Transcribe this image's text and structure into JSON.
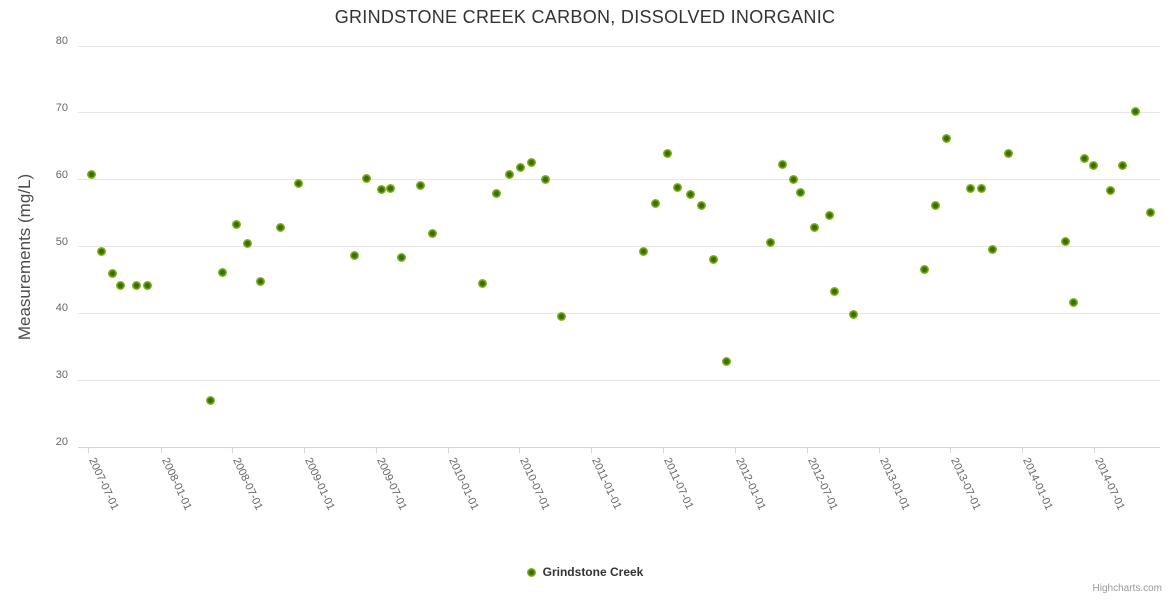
{
  "credit": "Highcharts.com",
  "colors": {
    "point_fill": "#7cb319",
    "point_edge": "#86bd2b",
    "point_core": "#3c6a00",
    "grid_line": "#e6e6e6",
    "axis_line": "#ccd6eb",
    "title_text": "#333333",
    "axis_label_text": "#666666",
    "axis_title_text": "#4d4d4d",
    "legend_text": "#333333",
    "credit_text": "#999999"
  },
  "chart_data": {
    "type": "scatter",
    "title": "GRINDSTONE CREEK CARBON, DISSOLVED INORGANIC",
    "xlabel": "",
    "ylabel": "Measurements (mg/L)",
    "ylim": [
      20,
      80
    ],
    "yticks": [
      20,
      30,
      40,
      50,
      60,
      70,
      80
    ],
    "xticks": [
      "2007-07-01",
      "2008-01-01",
      "2008-07-01",
      "2009-01-01",
      "2009-07-01",
      "2010-01-01",
      "2010-07-01",
      "2011-01-01",
      "2011-07-01",
      "2012-01-01",
      "2012-07-01",
      "2013-01-01",
      "2013-07-01",
      "2014-01-01",
      "2014-07-01"
    ],
    "x_range": [
      "2007-06-05",
      "2014-12-17"
    ],
    "grid": "horizontal",
    "legend_position": "bottom-center",
    "series": [
      {
        "name": "Grindstone Creek",
        "data": [
          [
            "2007-07-09",
            60.7
          ],
          [
            "2007-08-04",
            49.3
          ],
          [
            "2007-09-02",
            45.9
          ],
          [
            "2007-09-21",
            44.1
          ],
          [
            "2007-11-01",
            44.1
          ],
          [
            "2007-11-30",
            44.2
          ],
          [
            "2008-05-08",
            26.9
          ],
          [
            "2008-06-07",
            46.1
          ],
          [
            "2008-07-13",
            53.3
          ],
          [
            "2008-08-10",
            50.5
          ],
          [
            "2008-09-12",
            44.7
          ],
          [
            "2008-10-31",
            52.9
          ],
          [
            "2008-12-18",
            59.4
          ],
          [
            "2009-05-08",
            48.7
          ],
          [
            "2009-06-09",
            60.1
          ],
          [
            "2009-07-17",
            58.6
          ],
          [
            "2009-08-09",
            58.7
          ],
          [
            "2009-09-06",
            48.4
          ],
          [
            "2009-10-23",
            59.2
          ],
          [
            "2009-11-22",
            51.9
          ],
          [
            "2010-03-31",
            44.4
          ],
          [
            "2010-05-05",
            57.9
          ],
          [
            "2010-06-07",
            60.7
          ],
          [
            "2010-07-05",
            61.8
          ],
          [
            "2010-08-02",
            62.5
          ],
          [
            "2010-09-05",
            60.0
          ],
          [
            "2010-10-17",
            39.5
          ],
          [
            "2011-05-13",
            49.3
          ],
          [
            "2011-06-13",
            56.4
          ],
          [
            "2011-07-13",
            63.9
          ],
          [
            "2011-08-08",
            58.9
          ],
          [
            "2011-09-10",
            57.8
          ],
          [
            "2011-10-07",
            56.2
          ],
          [
            "2011-11-07",
            48.1
          ],
          [
            "2011-12-11",
            32.8
          ],
          [
            "2012-04-01",
            50.6
          ],
          [
            "2012-05-01",
            62.3
          ],
          [
            "2012-05-29",
            60.0
          ],
          [
            "2012-06-16",
            58.1
          ],
          [
            "2012-07-20",
            52.8
          ],
          [
            "2012-08-29",
            54.7
          ],
          [
            "2012-09-11",
            43.2
          ],
          [
            "2012-10-29",
            39.9
          ],
          [
            "2013-04-26",
            46.5
          ],
          [
            "2013-05-24",
            56.1
          ],
          [
            "2013-06-21",
            66.1
          ],
          [
            "2013-08-21",
            58.7
          ],
          [
            "2013-09-18",
            58.7
          ],
          [
            "2013-10-17",
            49.6
          ],
          [
            "2013-11-27",
            63.9
          ],
          [
            "2014-04-21",
            50.8
          ],
          [
            "2014-05-10",
            41.6
          ],
          [
            "2014-06-07",
            63.1
          ],
          [
            "2014-06-30",
            62.1
          ],
          [
            "2014-08-14",
            58.4
          ],
          [
            "2014-09-13",
            62.1
          ],
          [
            "2014-10-15",
            70.2
          ],
          [
            "2014-11-22",
            55.1
          ]
        ]
      }
    ]
  }
}
